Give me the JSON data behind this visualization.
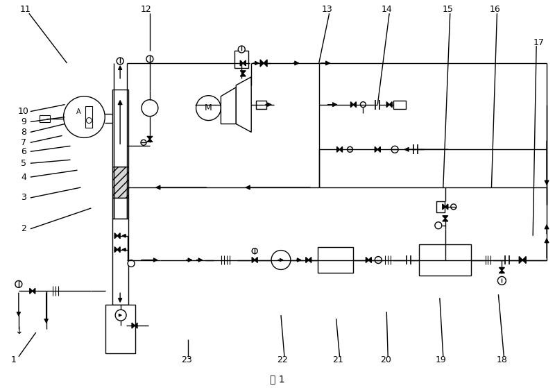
{
  "bg": "#ffffff",
  "lc": "#000000",
  "lw": 1.0,
  "fw": 8.0,
  "fh": 5.59,
  "caption": "图 1"
}
